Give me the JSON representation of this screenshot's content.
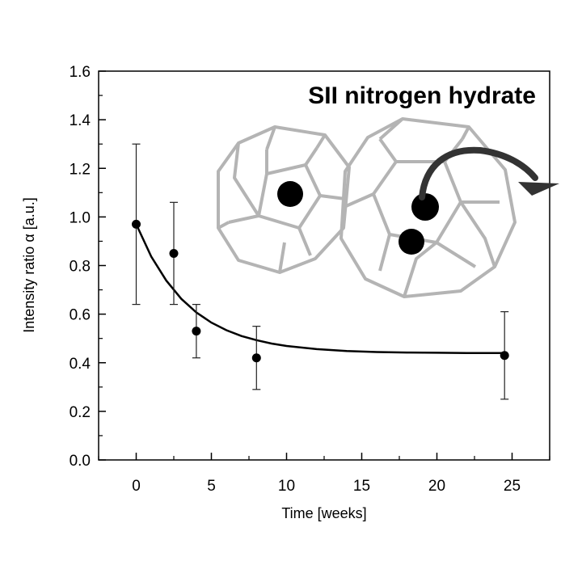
{
  "chart_data": {
    "type": "scatter",
    "title": "SII nitrogen hydrate",
    "xlabel": "Time [weeks]",
    "ylabel": "Intensity ratio α [a.u.]",
    "xlim": [
      -2.5,
      27.5
    ],
    "ylim": [
      0.0,
      1.6
    ],
    "x_ticks": [
      "0",
      "5",
      "10",
      "15",
      "20",
      "25"
    ],
    "y_ticks": [
      "0.0",
      "0.2",
      "0.4",
      "0.6",
      "0.8",
      "1.0",
      "1.2",
      "1.4",
      "1.6"
    ],
    "series": [
      {
        "points": [
          {
            "x": 0,
            "y": 0.97,
            "err_low": 0.64,
            "err_high": 1.3
          },
          {
            "x": 2.5,
            "y": 0.85,
            "err_low": 0.64,
            "err_high": 1.06
          },
          {
            "x": 4,
            "y": 0.53,
            "err_low": 0.42,
            "err_high": 0.64
          },
          {
            "x": 8,
            "y": 0.42,
            "err_low": 0.29,
            "err_high": 0.55
          },
          {
            "x": 24.5,
            "y": 0.43,
            "err_low": 0.25,
            "err_high": 0.61
          }
        ]
      }
    ],
    "fit": {
      "form": "exponential decay",
      "x": [
        0,
        1,
        2,
        3,
        4,
        5,
        6,
        7,
        8,
        9,
        10,
        12,
        14,
        16,
        18,
        20,
        22,
        24.5
      ],
      "y": [
        0.97,
        0.837,
        0.738,
        0.663,
        0.607,
        0.565,
        0.534,
        0.51,
        0.493,
        0.479,
        0.469,
        0.456,
        0.448,
        0.444,
        0.442,
        0.441,
        0.44,
        0.44
      ]
    },
    "grid": false,
    "legend": "none",
    "colors": {
      "points": "#000000",
      "cage_lines": "#b4b4b4",
      "arrow": "#333333"
    }
  }
}
